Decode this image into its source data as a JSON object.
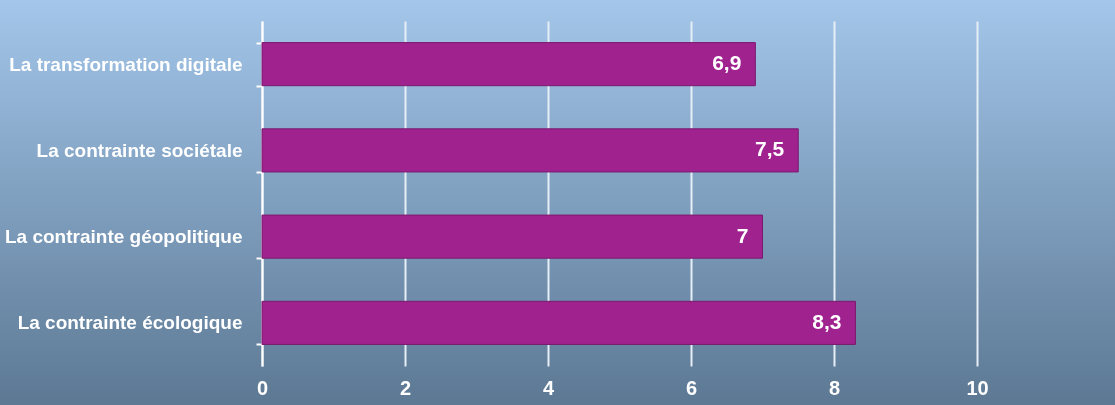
{
  "chart_data": {
    "type": "bar",
    "orientation": "horizontal",
    "categories": [
      "La transformation digitale",
      "La contrainte sociétale",
      "La contrainte géopolitique",
      "La contrainte écologique"
    ],
    "values": [
      6.9,
      7.5,
      7,
      8.3
    ],
    "value_labels": [
      "6,9",
      "7,5",
      "7",
      "8,3"
    ],
    "color": "#a0228f",
    "xlim": [
      0,
      10
    ],
    "xticks": [
      0,
      2,
      4,
      6,
      8,
      10
    ],
    "grid": "x"
  }
}
